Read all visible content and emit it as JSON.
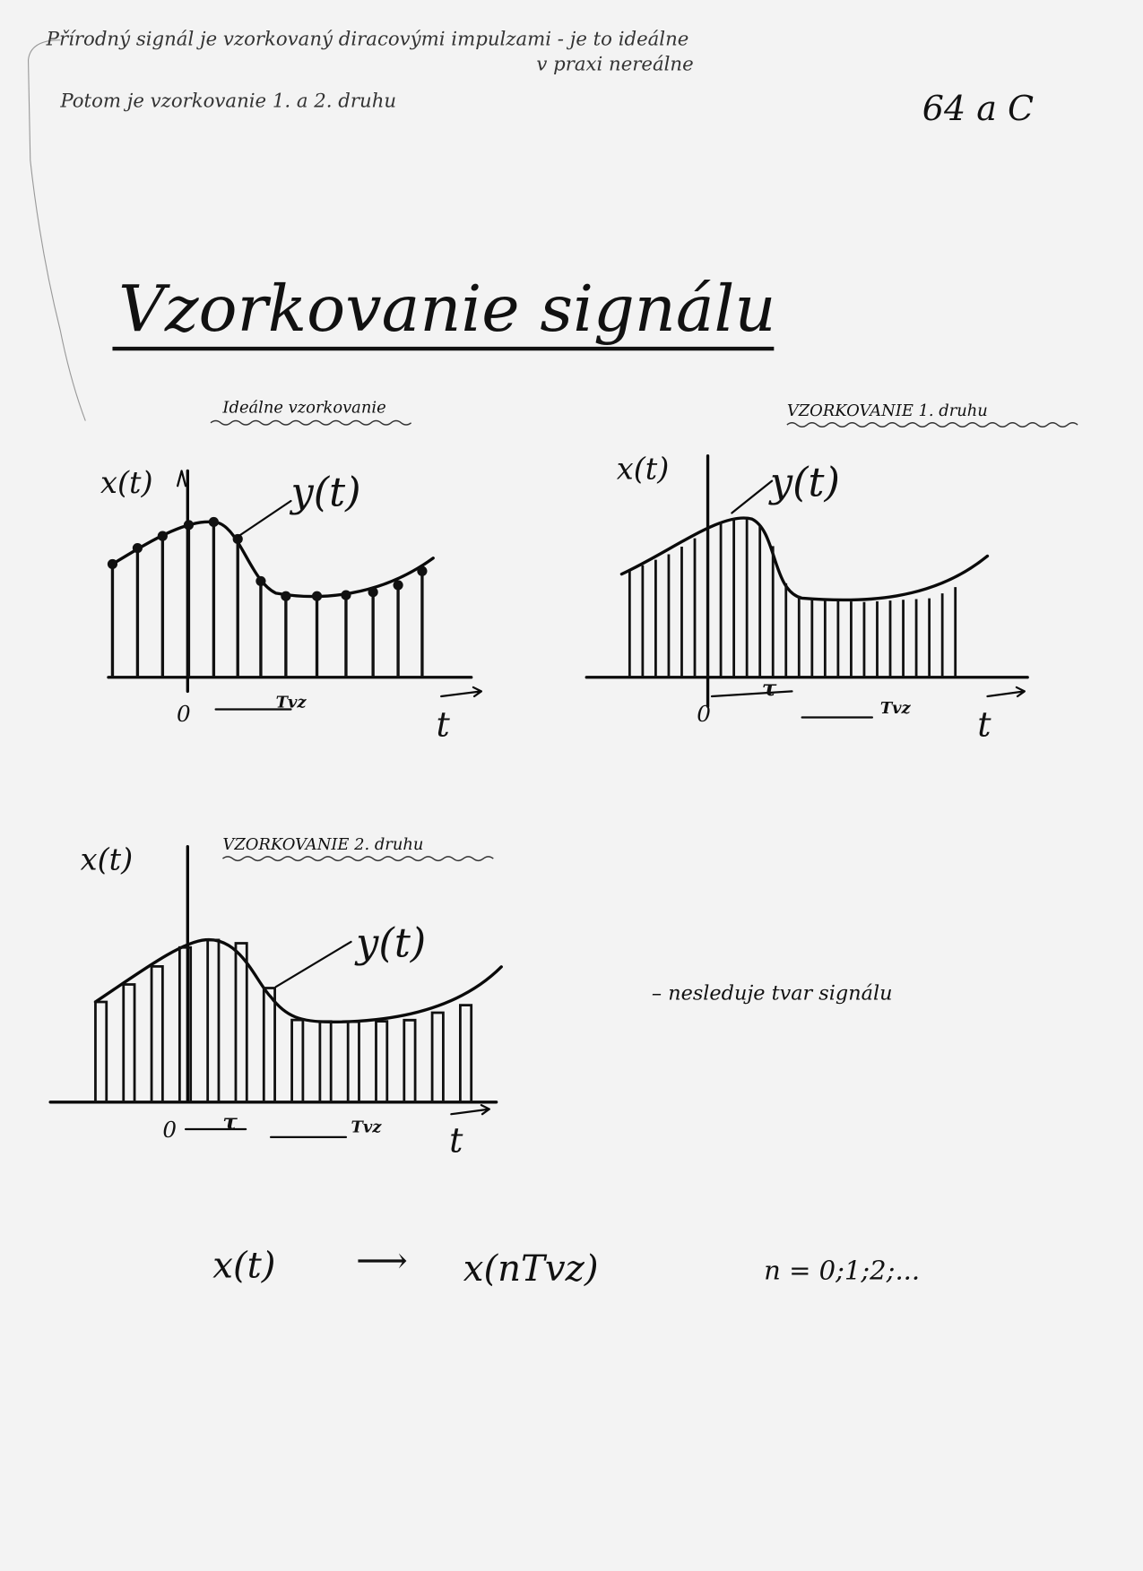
{
  "notes": {
    "line1": "Přírodný signál je vzorkovaný diracovými impulzami - je to ideálne",
    "line1b": "v praxi nereálne",
    "line2": "Potom je vzorkovanie 1. a 2. druhu",
    "page_number": "64 a C"
  },
  "title": "Vzorkovanie signálu",
  "graphs": [
    {
      "heading": "Ideálne vzorkovanie",
      "y_label": "x(t)",
      "curve_label": "y(t)",
      "origin": "0",
      "period": "Tvz",
      "x_label": "t"
    },
    {
      "heading": "VZORKOVANIE 1. druhu",
      "y_label": "x(t)",
      "curve_label": "y(t)",
      "origin": "0",
      "pulse": "τ",
      "period": "Tvz",
      "x_label": "t"
    },
    {
      "heading": "VZORKOVANIE 2. druhu",
      "y_label": "x(t)",
      "curve_label": "y(t)",
      "origin": "0",
      "pulse": "τ",
      "period": "Tvz",
      "x_label": "t",
      "note": "– nesleduje tvar signálu"
    }
  ],
  "formula": {
    "left": "x(t)",
    "arrow": "⟶",
    "right": "x(nTvz)",
    "n_values": "n = 0;1;2;..."
  }
}
